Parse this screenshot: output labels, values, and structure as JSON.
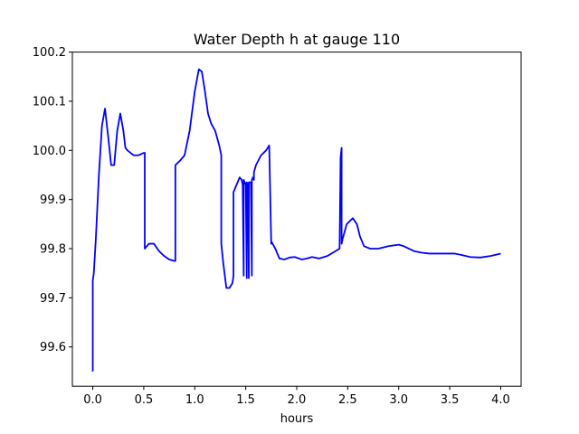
{
  "chart_data": {
    "type": "line",
    "title": "Water Depth h at gauge 110",
    "xlabel": "hours",
    "ylabel": "",
    "xlim": [
      -0.2,
      4.2
    ],
    "ylim": [
      99.52,
      100.2
    ],
    "xticks": [
      0.0,
      0.5,
      1.0,
      1.5,
      2.0,
      2.5,
      3.0,
      3.5,
      4.0
    ],
    "xtick_labels": [
      "0.0",
      "0.5",
      "1.0",
      "1.5",
      "2.0",
      "2.5",
      "3.0",
      "3.5",
      "4.0"
    ],
    "yticks": [
      99.6,
      99.7,
      99.8,
      99.9,
      100.0,
      100.1,
      100.2
    ],
    "ytick_labels": [
      "99.6",
      "99.7",
      "99.8",
      "99.9",
      "100.0",
      "100.1",
      "100.2"
    ],
    "grid": false,
    "series": [
      {
        "color": "#0000ff",
        "x": [
          0.0,
          0.0,
          0.01,
          0.03,
          0.06,
          0.09,
          0.12,
          0.15,
          0.18,
          0.21,
          0.24,
          0.27,
          0.3,
          0.32,
          0.34,
          0.37,
          0.4,
          0.45,
          0.5,
          0.51,
          0.51,
          0.55,
          0.6,
          0.65,
          0.7,
          0.75,
          0.8,
          0.81,
          0.81,
          0.86,
          0.9,
          0.95,
          1.0,
          1.04,
          1.07,
          1.1,
          1.13,
          1.16,
          1.2,
          1.24,
          1.26,
          1.26,
          1.28,
          1.31,
          1.34,
          1.37,
          1.38,
          1.38,
          1.41,
          1.44,
          1.46,
          1.47,
          1.48,
          1.48,
          1.5,
          1.51,
          1.51,
          1.52,
          1.53,
          1.53,
          1.55,
          1.56,
          1.56,
          1.57,
          1.58,
          1.58,
          1.6,
          1.65,
          1.7,
          1.73,
          1.75,
          1.75,
          1.79,
          1.83,
          1.88,
          1.93,
          1.98,
          2.05,
          2.1,
          2.15,
          2.22,
          2.3,
          2.38,
          2.42,
          2.42,
          2.43,
          2.44,
          2.44,
          2.45,
          2.49,
          2.55,
          2.59,
          2.62,
          2.66,
          2.72,
          2.8,
          2.9,
          3.0,
          3.05,
          3.1,
          3.15,
          3.22,
          3.3,
          3.45,
          3.55,
          3.62,
          3.7,
          3.8,
          3.9,
          4.0
        ],
        "values": [
          99.55,
          99.735,
          99.75,
          99.82,
          99.95,
          100.05,
          100.085,
          100.03,
          99.97,
          99.97,
          100.04,
          100.075,
          100.04,
          100.005,
          100.0,
          99.995,
          99.99,
          99.99,
          99.995,
          99.995,
          99.8,
          99.81,
          99.81,
          99.795,
          99.785,
          99.778,
          99.775,
          99.775,
          99.97,
          99.98,
          99.99,
          100.04,
          100.12,
          100.165,
          100.16,
          100.12,
          100.075,
          100.055,
          100.04,
          100.01,
          99.99,
          99.81,
          99.77,
          99.72,
          99.72,
          99.73,
          99.745,
          99.915,
          99.93,
          99.945,
          99.94,
          99.93,
          99.745,
          99.94,
          99.93,
          99.74,
          99.935,
          99.93,
          99.74,
          99.935,
          99.935,
          99.745,
          99.94,
          99.945,
          99.94,
          99.955,
          99.97,
          99.99,
          100.0,
          100.01,
          99.81,
          99.815,
          99.8,
          99.78,
          99.778,
          99.782,
          99.783,
          99.778,
          99.78,
          99.783,
          99.78,
          99.785,
          99.795,
          99.8,
          99.8,
          99.985,
          100.005,
          99.81,
          99.82,
          99.85,
          99.862,
          99.85,
          99.825,
          99.805,
          99.8,
          99.8,
          99.805,
          99.808,
          99.805,
          99.8,
          99.795,
          99.792,
          99.79,
          99.79,
          99.79,
          99.787,
          99.783,
          99.782,
          99.785,
          99.79
        ]
      }
    ]
  }
}
